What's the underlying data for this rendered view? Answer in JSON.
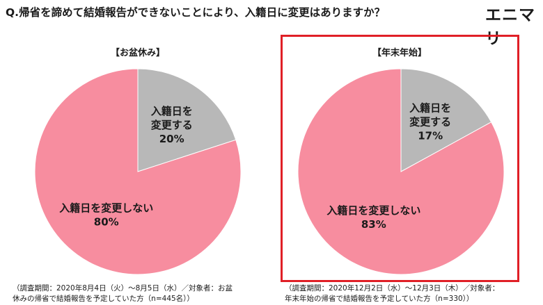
{
  "header": {
    "question": "Q.帰省を諦めて結婚報告ができないことにより、入籍日に変更はありますか？",
    "brand": "エニマリ"
  },
  "colors": {
    "change": "#b8b8b8",
    "no_change": "#f78d9f",
    "highlight": "#e01f26"
  },
  "chart_data": [
    {
      "type": "pie",
      "title": "【お盆休み】",
      "slices": [
        {
          "label": "入籍日を変更する",
          "value": 20,
          "value_label": "20%"
        },
        {
          "label": "入籍日を変更しない",
          "value": 80,
          "value_label": "80%"
        }
      ]
    },
    {
      "type": "pie",
      "title": "【年末年始】",
      "slices": [
        {
          "label": "入籍日を変更する",
          "value": 17,
          "value_label": "17%"
        },
        {
          "label": "入籍日を変更しない",
          "value": 83,
          "value_label": "83%"
        }
      ]
    }
  ],
  "notes": {
    "left": [
      "（調査期間：2020年8月4日（火）〜8月5日（水）／対象者：お盆",
      "休みの帰省で結婚報告を予定していた方（n=445名））"
    ],
    "right": [
      "（調査期間：2020年12月2日（水）〜12月3日（木）／対象者：",
      "年末年始の帰省で結婚報告を予定していた方（n=330））"
    ]
  }
}
